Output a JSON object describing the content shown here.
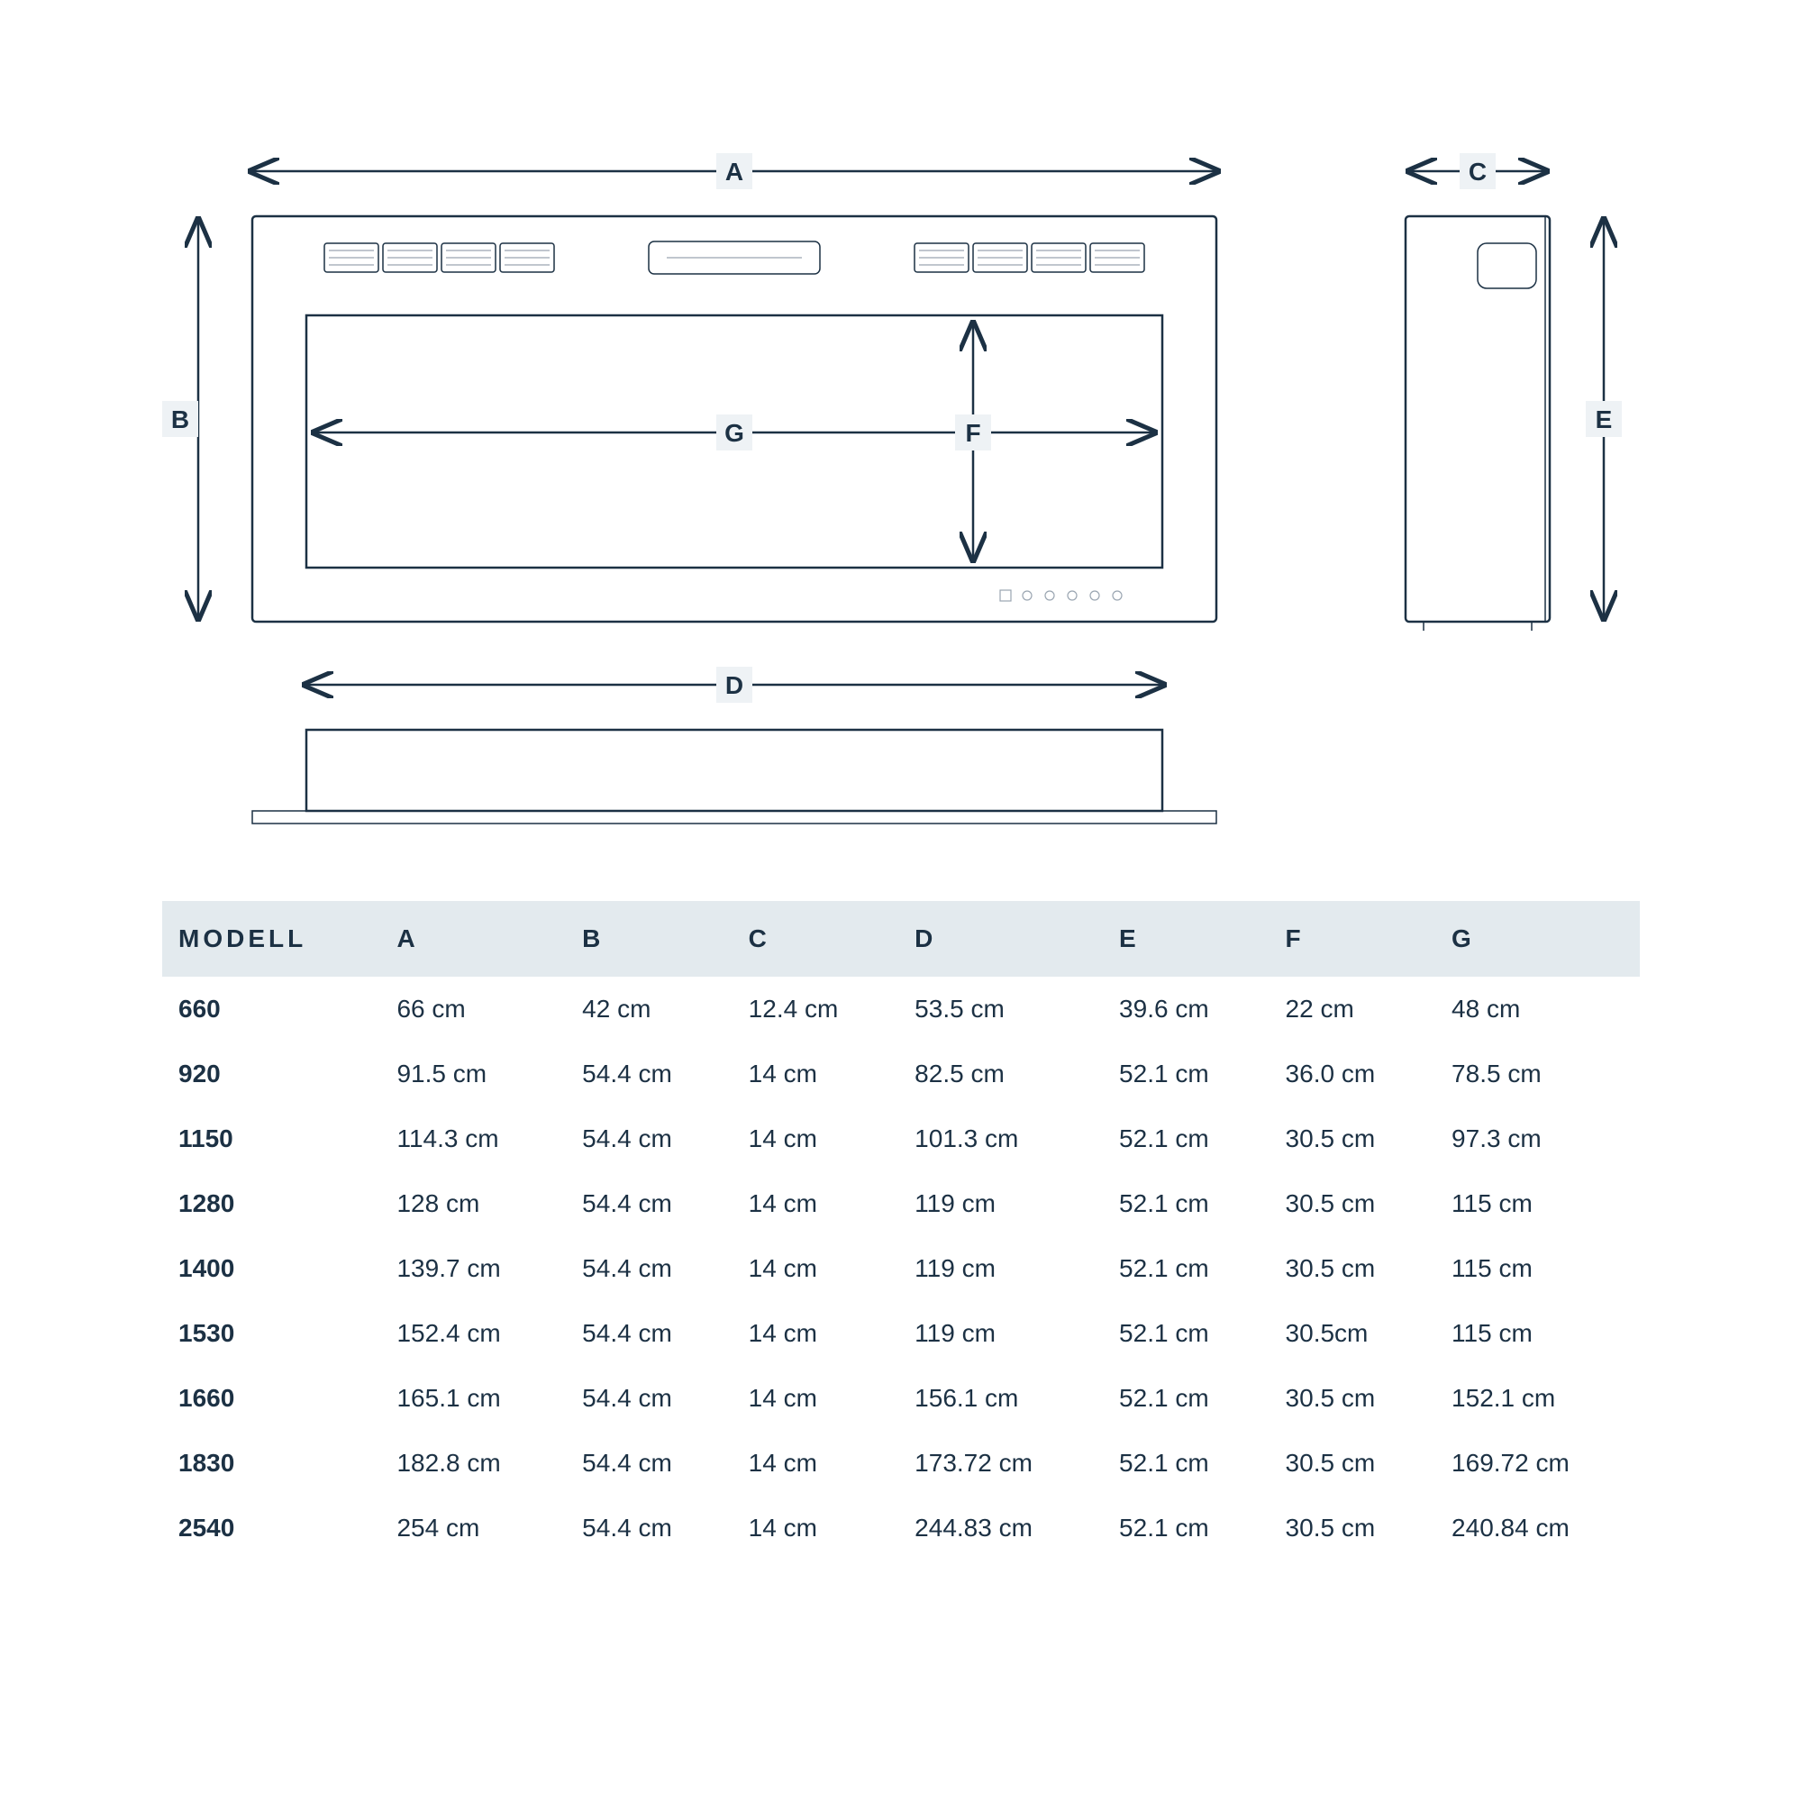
{
  "colors": {
    "ink": "#1c3144",
    "headerBg": "#e3eaee",
    "labelBg": "#eef2f5",
    "page": "#ffffff",
    "hair": "#9aa5b1"
  },
  "diagram": {
    "labels": {
      "A": "A",
      "B": "B",
      "C": "C",
      "D": "D",
      "E": "E",
      "F": "F",
      "G": "G"
    }
  },
  "table": {
    "header": {
      "model": "MODELL",
      "A": "A",
      "B": "B",
      "C": "C",
      "D": "D",
      "E": "E",
      "F": "F",
      "G": "G"
    },
    "rows": [
      {
        "model": "660",
        "A": "66  cm",
        "B": "42 cm",
        "C": "12.4 cm",
        "D": "53.5 cm",
        "E": "39.6 cm",
        "F": "22 cm",
        "G": "48 cm"
      },
      {
        "model": "920",
        "A": "91.5 cm",
        "B": "54.4 cm",
        "C": "14 cm",
        "D": "82.5 cm",
        "E": "52.1 cm",
        "F": "36.0 cm",
        "G": "78.5 cm"
      },
      {
        "model": "1150",
        "A": "114.3 cm",
        "B": "54.4 cm",
        "C": "14 cm",
        "D": "101.3 cm",
        "E": "52.1 cm",
        "F": "30.5 cm",
        "G": "97.3 cm"
      },
      {
        "model": "1280",
        "A": "128 cm",
        "B": "54.4 cm",
        "C": "14 cm",
        "D": "119 cm",
        "E": "52.1 cm",
        "F": "30.5 cm",
        "G": "115 cm"
      },
      {
        "model": "1400",
        "A": "139.7 cm",
        "B": "54.4 cm",
        "C": "14 cm",
        "D": "119 cm",
        "E": "52.1 cm",
        "F": "30.5 cm",
        "G": "115 cm"
      },
      {
        "model": "1530",
        "A": "152.4 cm",
        "B": "54.4 cm",
        "C": "14 cm",
        "D": "119 cm",
        "E": "52.1 cm",
        "F": "30.5cm",
        "G": "115 cm"
      },
      {
        "model": "1660",
        "A": "165.1 cm",
        "B": "54.4 cm",
        "C": "14 cm",
        "D": "156.1 cm",
        "E": "52.1 cm",
        "F": "30.5 cm",
        "G": "152.1 cm"
      },
      {
        "model": "1830",
        "A": "182.8 cm",
        "B": "54.4 cm",
        "C": "14 cm",
        "D": "173.72 cm",
        "E": "52.1 cm",
        "F": "30.5 cm",
        "G": "169.72 cm"
      },
      {
        "model": "2540",
        "A": "254 cm",
        "B": "54.4 cm",
        "C": "14 cm",
        "D": "244.83 cm",
        "E": "52.1 cm",
        "F": "30.5 cm",
        "G": "240.84 cm"
      }
    ]
  }
}
